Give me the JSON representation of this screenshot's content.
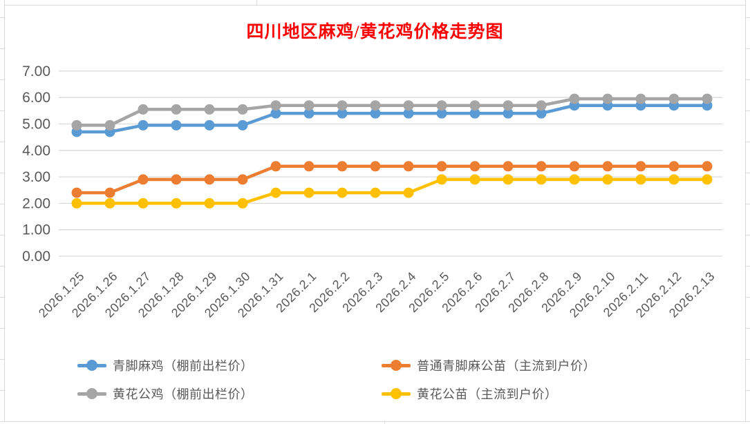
{
  "chart_data": {
    "type": "line",
    "title": "四川地区麻鸡/黄花鸡价格走势图",
    "title_color": "#FF0000",
    "axis_color": "#595959",
    "grid_color": "#D9D9D9",
    "grid": "horizontal",
    "legend_position": "bottom",
    "ylim": [
      0,
      7
    ],
    "yticks": [
      "7.00",
      "6.00",
      "5.00",
      "4.00",
      "3.00",
      "2.00",
      "1.00",
      "0.00"
    ],
    "categories": [
      "2026.1.25",
      "2026.1.26",
      "2026.1.27",
      "2026.1.28",
      "2026.1.29",
      "2026.1.30",
      "2026.1.31",
      "2026.2.1",
      "2026.2.2",
      "2026.2.3",
      "2026.2.4",
      "2026.2.5",
      "2026.2.6",
      "2026.2.7",
      "2026.2.8",
      "2026.2.9",
      "2026.2.10",
      "2026.2.11",
      "2026.2.12",
      "2026.2.13"
    ],
    "series": [
      {
        "id": "qingjiao-maji",
        "name": "青脚麻鸡（棚前出栏价）",
        "color": "#5B9BD5",
        "values": [
          4.7,
          4.7,
          4.95,
          4.95,
          4.95,
          4.95,
          5.4,
          5.4,
          5.4,
          5.4,
          5.4,
          5.4,
          5.4,
          5.4,
          5.4,
          5.7,
          5.7,
          5.7,
          5.7,
          5.7
        ]
      },
      {
        "id": "putong-qingjiaoma-gongmiao",
        "name": "普通青脚麻公苗（主流到户价）",
        "color": "#ED7D31",
        "values": [
          2.4,
          2.4,
          2.9,
          2.9,
          2.9,
          2.9,
          3.4,
          3.4,
          3.4,
          3.4,
          3.4,
          3.4,
          3.4,
          3.4,
          3.4,
          3.4,
          3.4,
          3.4,
          3.4,
          3.4
        ]
      },
      {
        "id": "huanghua-gongji",
        "name": "黄花公鸡（棚前出栏价）",
        "color": "#A5A5A5",
        "values": [
          4.95,
          4.95,
          5.55,
          5.55,
          5.55,
          5.55,
          5.7,
          5.7,
          5.7,
          5.7,
          5.7,
          5.7,
          5.7,
          5.7,
          5.7,
          5.95,
          5.95,
          5.95,
          5.95,
          5.95
        ]
      },
      {
        "id": "huanghua-gongmiao",
        "name": "黄花公苗（主流到户价）",
        "color": "#FFC000",
        "values": [
          2.0,
          2.0,
          2.0,
          2.0,
          2.0,
          2.0,
          2.4,
          2.4,
          2.4,
          2.4,
          2.4,
          2.9,
          2.9,
          2.9,
          2.9,
          2.9,
          2.9,
          2.9,
          2.9,
          2.9
        ]
      }
    ]
  }
}
